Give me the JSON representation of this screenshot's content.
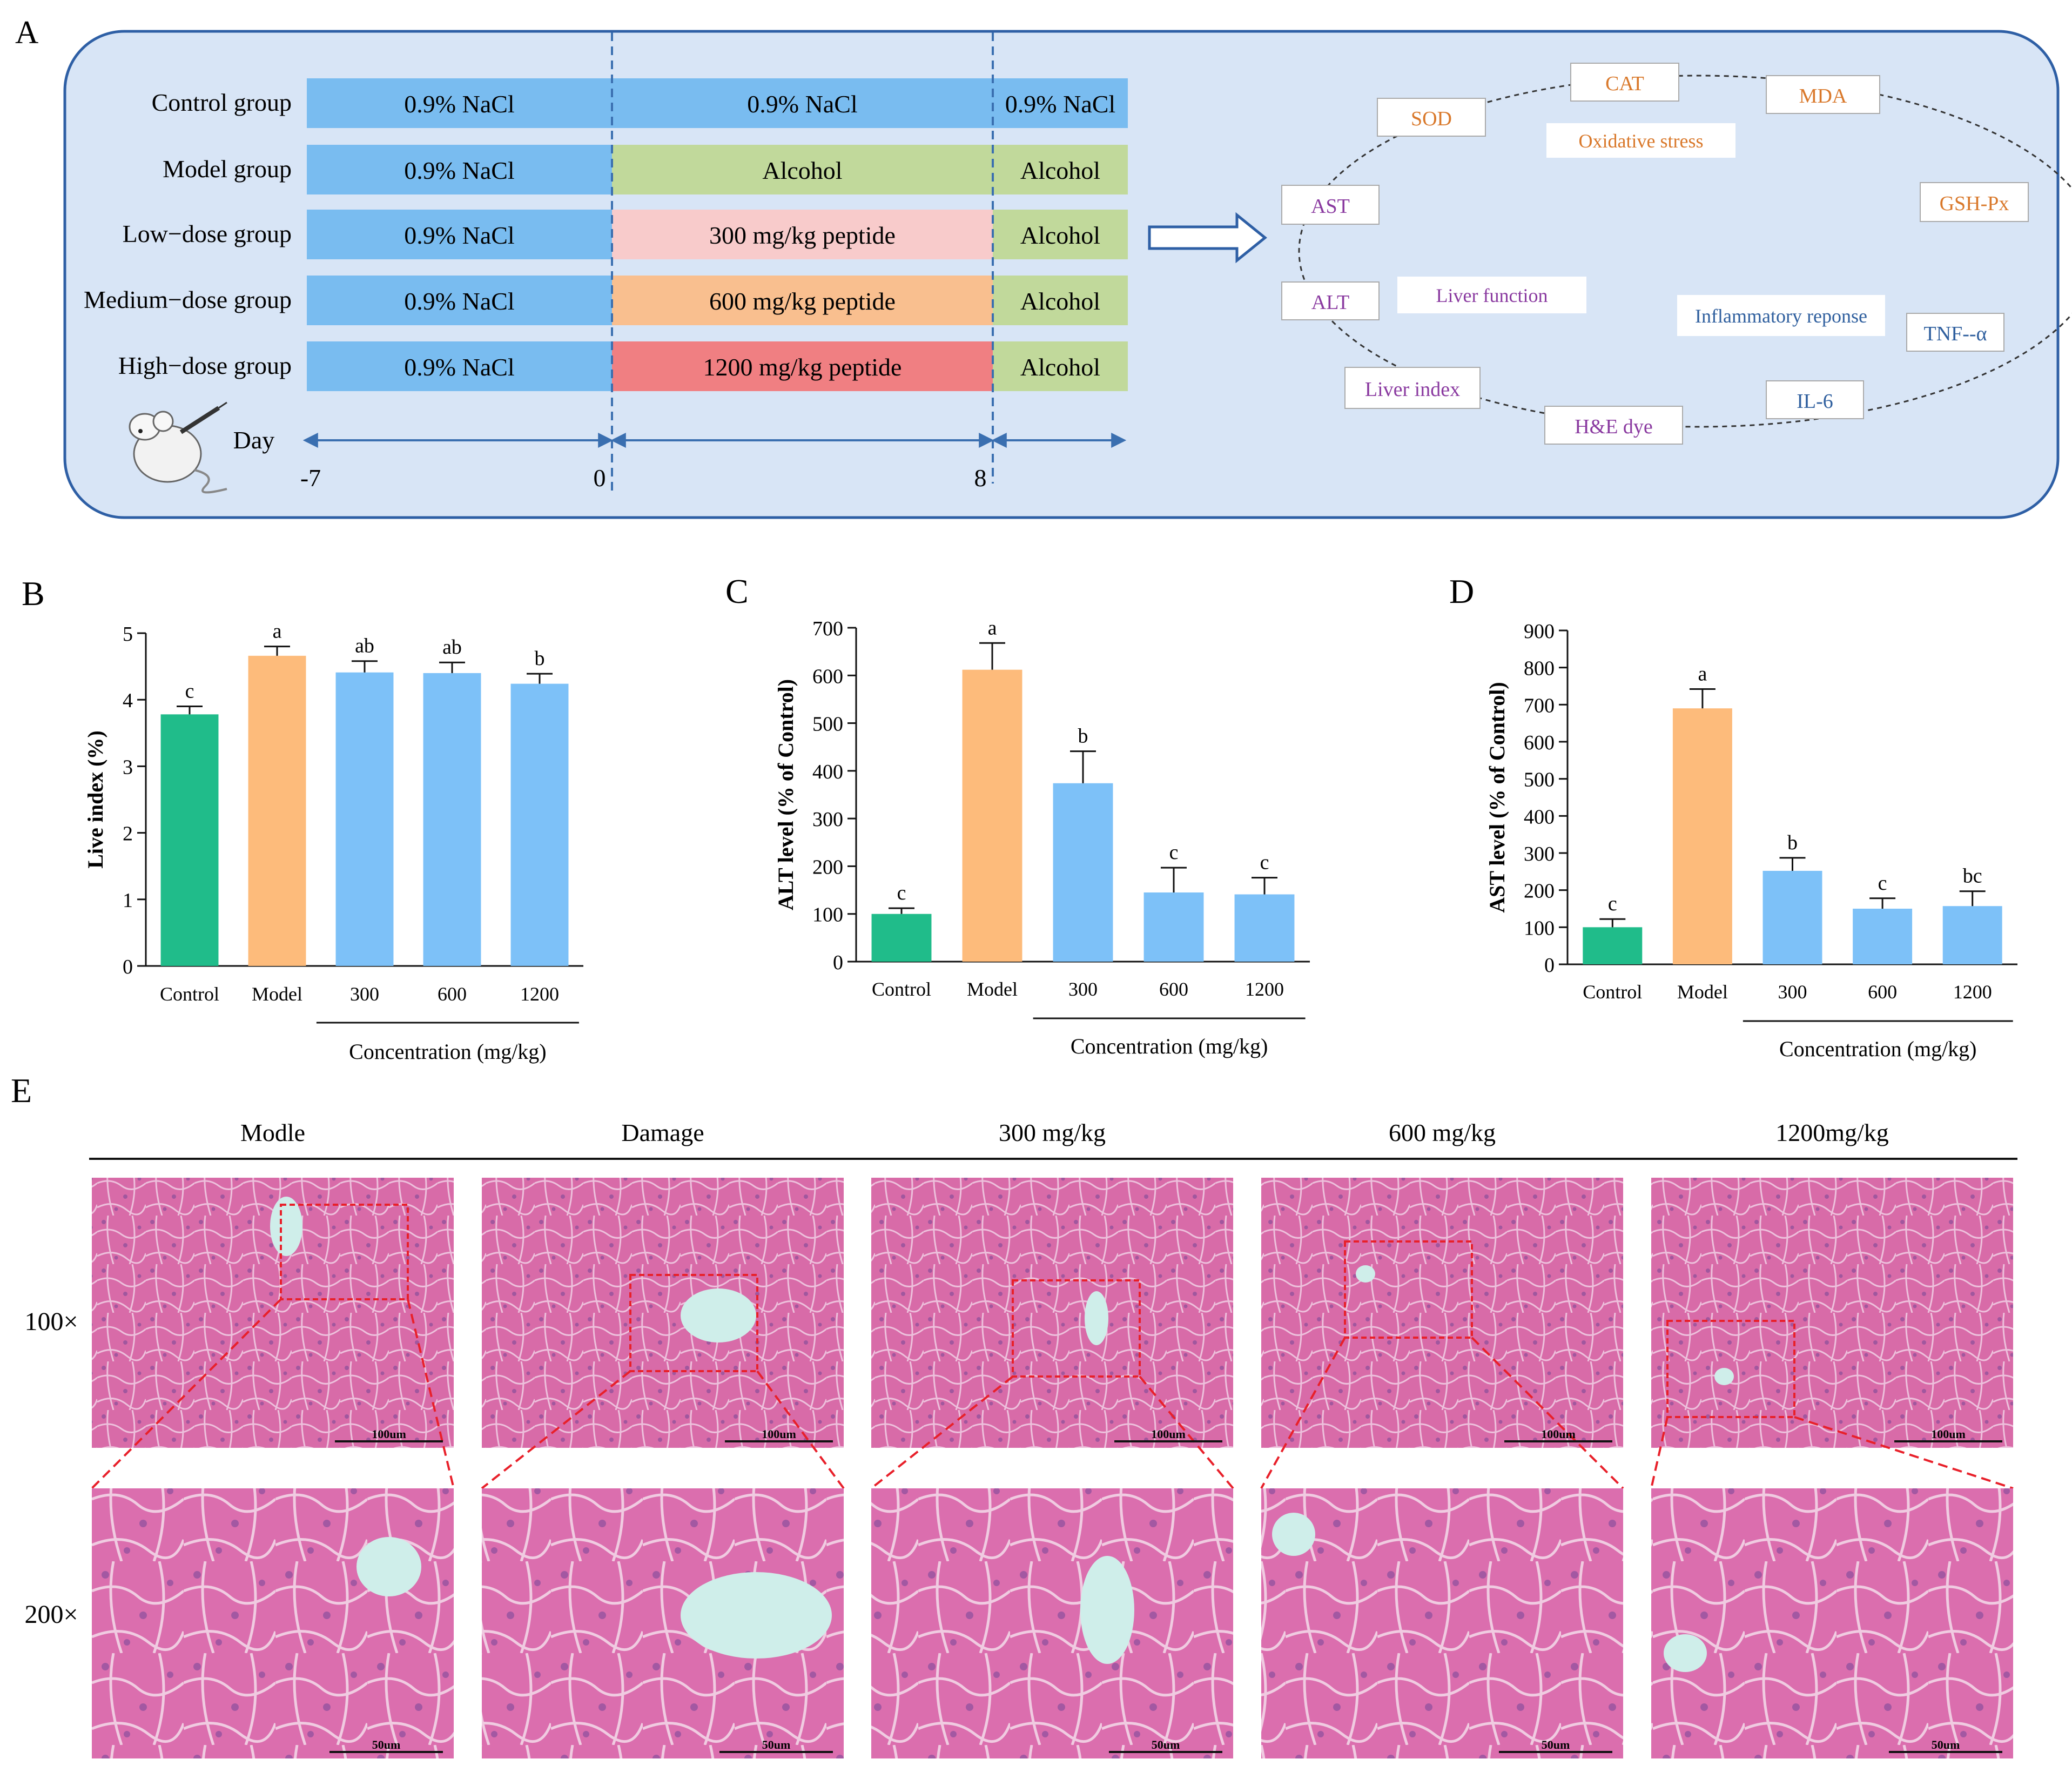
{
  "panels": {
    "A": "A",
    "B": "B",
    "C": "C",
    "D": "D",
    "E": "E"
  },
  "panel_a": {
    "groups": [
      {
        "label": "Control group",
        "phases": [
          "0.9% NaCl",
          "0.9% NaCl",
          "0.9% NaCl"
        ],
        "colors": [
          "#79bcf0",
          "#79bcf0",
          "#79bcf0"
        ]
      },
      {
        "label": "Model group",
        "phases": [
          "0.9% NaCl",
          "Alcohol",
          "Alcohol"
        ],
        "colors": [
          "#79bcf0",
          "#c1d99b",
          "#c1d99b"
        ]
      },
      {
        "label": "Low−dose group",
        "phases": [
          "0.9% NaCl",
          "300 mg/kg peptide",
          "Alcohol"
        ],
        "colors": [
          "#79bcf0",
          "#f8cbcb",
          "#c1d99b"
        ]
      },
      {
        "label": "Medium−dose group",
        "phases": [
          "0.9% NaCl",
          "600 mg/kg peptide",
          "Alcohol"
        ],
        "colors": [
          "#79bcf0",
          "#f9bf8f",
          "#c1d99b"
        ]
      },
      {
        "label": "High−dose group",
        "phases": [
          "0.9% NaCl",
          "1200 mg/kg peptide",
          "Alcohol"
        ],
        "colors": [
          "#79bcf0",
          "#f07f82",
          "#c1d99b"
        ]
      }
    ],
    "day_label": "Day",
    "day_ticks": [
      "-7",
      "0",
      "8"
    ],
    "cycle_items": [
      {
        "text": "CAT",
        "color": "#d9782a"
      },
      {
        "text": "MDA",
        "color": "#d9782a"
      },
      {
        "text": "GSH-Px",
        "color": "#d9782a"
      },
      {
        "text": "TNF--α",
        "color": "#2f5f9e"
      },
      {
        "text": "IL-6",
        "color": "#2f5f9e"
      },
      {
        "text": "H&E dye",
        "color": "#8a3aa0"
      },
      {
        "text": "Liver index",
        "color": "#8a3aa0"
      },
      {
        "text": "ALT",
        "color": "#8a3aa0"
      },
      {
        "text": "AST",
        "color": "#8a3aa0"
      },
      {
        "text": "SOD",
        "color": "#d9782a"
      }
    ],
    "category_labels": [
      {
        "text": "Oxidative stress",
        "color": "#d9782a"
      },
      {
        "text": "Liver function",
        "color": "#8a3aa0"
      },
      {
        "text": "Inflammatory reponse",
        "color": "#2f5f9e"
      }
    ]
  },
  "chart_data": [
    {
      "type": "bar",
      "panel": "B",
      "categories": [
        "Control",
        "Model",
        "300",
        "600",
        "1200"
      ],
      "values": [
        3.78,
        4.66,
        4.41,
        4.4,
        4.24
      ],
      "errors": [
        0.12,
        0.14,
        0.17,
        0.16,
        0.15
      ],
      "letters": [
        "c",
        "a",
        "ab",
        "ab",
        "b"
      ],
      "colors": [
        "#20bc8a",
        "#fdbb7b",
        "#7dc1f8",
        "#7dc1f8",
        "#7dc1f8"
      ],
      "ylabel": "Live index (%)",
      "xlabel": "Concentration (mg/kg)",
      "ylim": [
        0,
        5
      ],
      "yticks": [
        0,
        1,
        2,
        3,
        4,
        5
      ]
    },
    {
      "type": "bar",
      "panel": "C",
      "categories": [
        "Control",
        "Model",
        "300",
        "600",
        "1200"
      ],
      "values": [
        100,
        612,
        374,
        145,
        141
      ],
      "errors": [
        12,
        56,
        67,
        52,
        35
      ],
      "letters": [
        "c",
        "a",
        "b",
        "c",
        "c"
      ],
      "colors": [
        "#20bc8a",
        "#fdbb7b",
        "#7dc1f8",
        "#7dc1f8",
        "#7dc1f8"
      ],
      "ylabel": "ALT level (% of Control)",
      "xlabel": "Concentration (mg/kg)",
      "ylim": [
        0,
        700
      ],
      "yticks": [
        0,
        100,
        200,
        300,
        400,
        500,
        600,
        700
      ]
    },
    {
      "type": "bar",
      "panel": "D",
      "categories": [
        "Control",
        "Model",
        "300",
        "600",
        "1200"
      ],
      "values": [
        100,
        690,
        252,
        150,
        157
      ],
      "errors": [
        22,
        52,
        35,
        28,
        40
      ],
      "letters": [
        "c",
        "a",
        "b",
        "c",
        "bc"
      ],
      "colors": [
        "#20bc8a",
        "#fdbb7b",
        "#7dc1f8",
        "#7dc1f8",
        "#7dc1f8"
      ],
      "ylabel": "AST level (% of Control)",
      "xlabel": "Concentration (mg/kg)",
      "ylim": [
        0,
        900
      ],
      "yticks": [
        0,
        100,
        200,
        300,
        400,
        500,
        600,
        700,
        800,
        900
      ]
    }
  ],
  "panel_e": {
    "columns": [
      "Modle",
      "Damage",
      "300 mg/kg",
      "600 mg/kg",
      "1200mg/kg"
    ],
    "rows": [
      "100×",
      "200×"
    ],
    "scalebars": [
      "100um",
      "50um"
    ]
  }
}
